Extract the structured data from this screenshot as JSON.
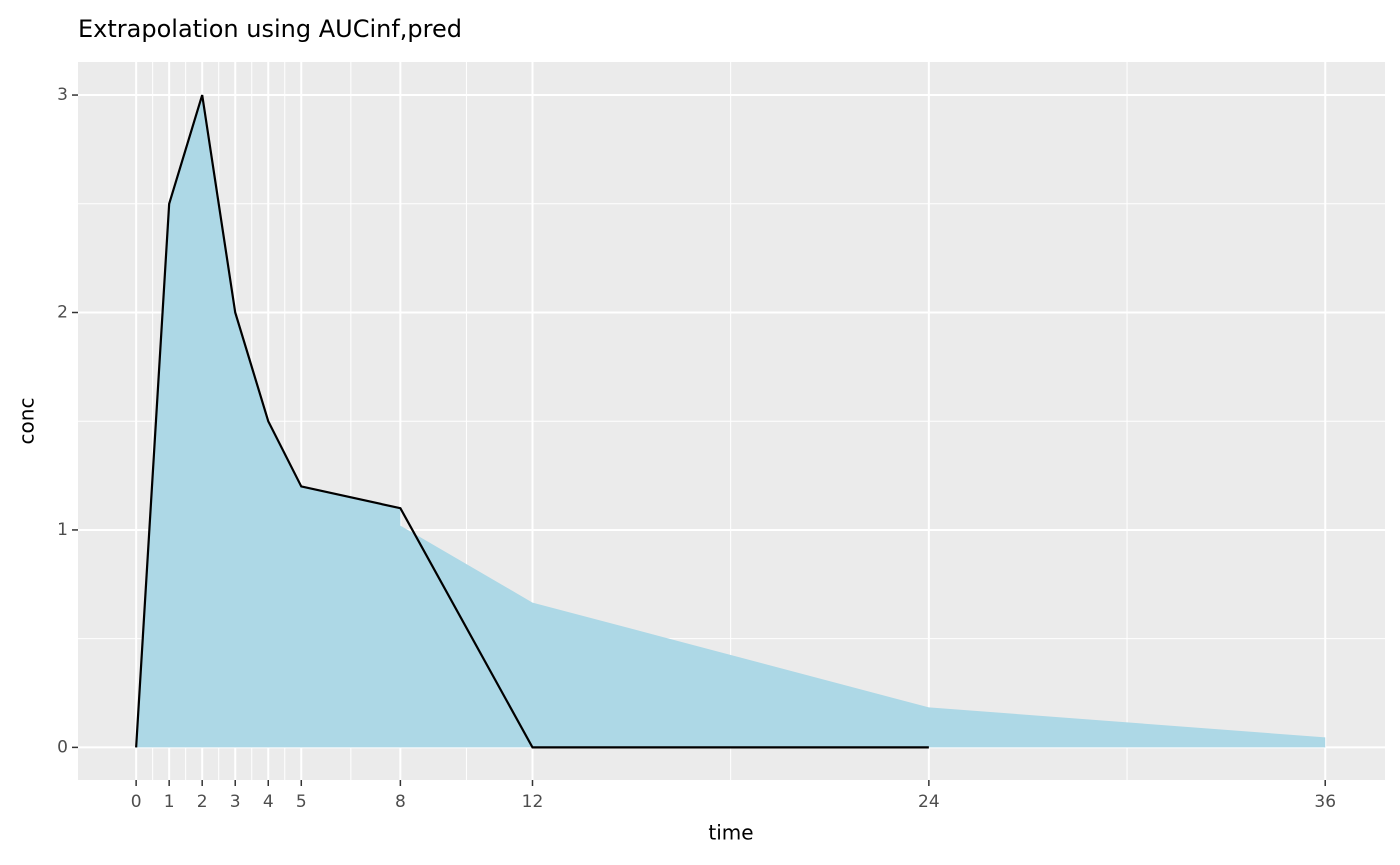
{
  "chart_data": {
    "type": "line",
    "title": "Extrapolation using AUCinf,pred",
    "x_label": "time",
    "y_label": "conc",
    "series": [
      {
        "type": "area",
        "color": "#add8e6",
        "x": [
          0,
          1,
          2,
          3,
          4,
          5,
          8,
          8,
          12,
          24,
          36
        ],
        "values": [
          0,
          2.5,
          3,
          2,
          1.5,
          1.2,
          1.1,
          1.02,
          0.666,
          0.184,
          0.046
        ]
      },
      {
        "type": "line",
        "color": "#000000",
        "x": [
          0,
          1,
          2,
          3,
          4,
          5,
          8,
          12,
          24
        ],
        "values": [
          0,
          2.5,
          3,
          2,
          1.5,
          1.2,
          1.1,
          0,
          0
        ]
      }
    ],
    "xlim": [
      -1.76,
      37.81
    ],
    "ylim": [
      -0.15,
      3.152
    ],
    "xticks": [
      0,
      1,
      2,
      3,
      4,
      5,
      8,
      12,
      24,
      36
    ],
    "yticks": [
      0,
      1,
      2,
      3
    ],
    "grid": true
  }
}
